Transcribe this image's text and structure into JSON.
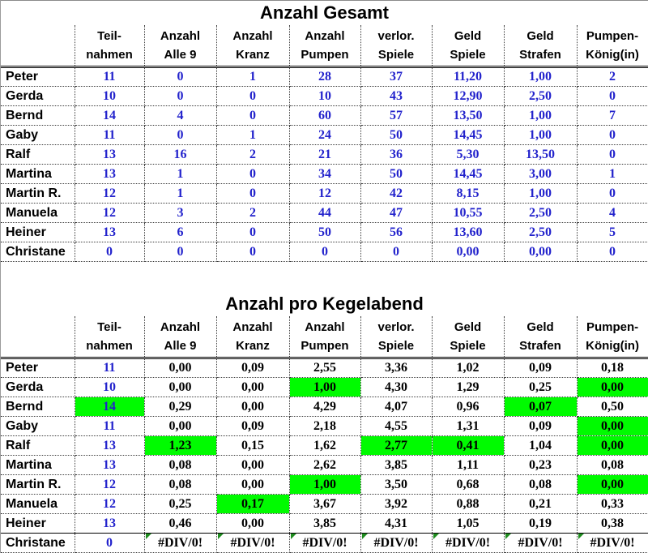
{
  "colors": {
    "data_blue": "#2222CC",
    "highlight_green": "#00FB00",
    "error_marker_green": "#1E8C1E"
  },
  "tables": [
    {
      "title": "Anzahl Gesamt",
      "headers": [
        [
          "Teil-",
          "nahmen"
        ],
        [
          "Anzahl",
          "Alle 9"
        ],
        [
          "Anzahl",
          "Kranz"
        ],
        [
          "Anzahl",
          "Pumpen"
        ],
        [
          "verlor.",
          "Spiele"
        ],
        [
          "Geld",
          "Spiele"
        ],
        [
          "Geld",
          "Strafen"
        ],
        [
          "Pumpen-",
          "König(in)"
        ]
      ],
      "rows": [
        {
          "name": "Peter",
          "values": [
            "11",
            "0",
            "1",
            "28",
            "37",
            "11,20",
            "1,00",
            "2"
          ]
        },
        {
          "name": "Gerda",
          "values": [
            "10",
            "0",
            "0",
            "10",
            "43",
            "12,90",
            "2,50",
            "0"
          ]
        },
        {
          "name": "Bernd",
          "values": [
            "14",
            "4",
            "0",
            "60",
            "57",
            "13,50",
            "1,00",
            "7"
          ]
        },
        {
          "name": "Gaby",
          "values": [
            "11",
            "0",
            "1",
            "24",
            "50",
            "14,45",
            "1,00",
            "0"
          ]
        },
        {
          "name": "Ralf",
          "values": [
            "13",
            "16",
            "2",
            "21",
            "36",
            "5,30",
            "13,50",
            "0"
          ]
        },
        {
          "name": "Martina",
          "values": [
            "13",
            "1",
            "0",
            "34",
            "50",
            "14,45",
            "3,00",
            "1"
          ]
        },
        {
          "name": "Martin R.",
          "values": [
            "12",
            "1",
            "0",
            "12",
            "42",
            "8,15",
            "1,00",
            "0"
          ]
        },
        {
          "name": "Manuela",
          "values": [
            "12",
            "3",
            "2",
            "44",
            "47",
            "10,55",
            "2,50",
            "4"
          ]
        },
        {
          "name": "Heiner",
          "values": [
            "13",
            "6",
            "0",
            "50",
            "56",
            "13,60",
            "2,50",
            "5"
          ]
        },
        {
          "name": "Christane",
          "values": [
            "0",
            "0",
            "0",
            "0",
            "0",
            "0,00",
            "0,00",
            "0"
          ]
        }
      ]
    },
    {
      "title": "Anzahl pro Kegelabend",
      "headers": [
        [
          "Teil-",
          "nahmen"
        ],
        [
          "Anzahl",
          "Alle 9"
        ],
        [
          "Anzahl",
          "Kranz"
        ],
        [
          "Anzahl",
          "Pumpen"
        ],
        [
          "verlor.",
          "Spiele"
        ],
        [
          "Geld",
          "Spiele"
        ],
        [
          "Geld",
          "Strafen"
        ],
        [
          "Pumpen-",
          "König(in)"
        ]
      ],
      "rows": [
        {
          "name": "Peter",
          "values": [
            "11",
            "0,00",
            "0,09",
            "2,55",
            "3,36",
            "1,02",
            "0,09",
            "0,18"
          ],
          "green": []
        },
        {
          "name": "Gerda",
          "values": [
            "10",
            "0,00",
            "0,00",
            "1,00",
            "4,30",
            "1,29",
            "0,25",
            "0,00"
          ],
          "green": [
            3,
            7
          ]
        },
        {
          "name": "Bernd",
          "values": [
            "14",
            "0,29",
            "0,00",
            "4,29",
            "4,07",
            "0,96",
            "0,07",
            "0,50"
          ],
          "green": [
            0,
            6
          ]
        },
        {
          "name": "Gaby",
          "values": [
            "11",
            "0,00",
            "0,09",
            "2,18",
            "4,55",
            "1,31",
            "0,09",
            "0,00"
          ],
          "green": [
            7
          ]
        },
        {
          "name": "Ralf",
          "values": [
            "13",
            "1,23",
            "0,15",
            "1,62",
            "2,77",
            "0,41",
            "1,04",
            "0,00"
          ],
          "green": [
            1,
            4,
            5,
            7
          ]
        },
        {
          "name": "Martina",
          "values": [
            "13",
            "0,08",
            "0,00",
            "2,62",
            "3,85",
            "1,11",
            "0,23",
            "0,08"
          ],
          "green": []
        },
        {
          "name": "Martin R.",
          "values": [
            "12",
            "0,08",
            "0,00",
            "1,00",
            "3,50",
            "0,68",
            "0,08",
            "0,00"
          ],
          "green": [
            3,
            7
          ]
        },
        {
          "name": "Manuela",
          "values": [
            "12",
            "0,25",
            "0,17",
            "3,67",
            "3,92",
            "0,88",
            "0,21",
            "0,33"
          ],
          "green": [
            2
          ]
        },
        {
          "name": "Heiner",
          "values": [
            "13",
            "0,46",
            "0,00",
            "3,85",
            "4,31",
            "1,05",
            "0,19",
            "0,38"
          ],
          "green": []
        },
        {
          "name": "Christane",
          "values": [
            "0",
            "#DIV/0!",
            "#DIV/0!",
            "#DIV/0!",
            "#DIV/0!",
            "#DIV/0!",
            "#DIV/0!",
            "#DIV/0!"
          ],
          "green": [],
          "error": [
            1,
            2,
            3,
            4,
            5,
            6,
            7
          ],
          "solid_top": true
        }
      ]
    }
  ]
}
